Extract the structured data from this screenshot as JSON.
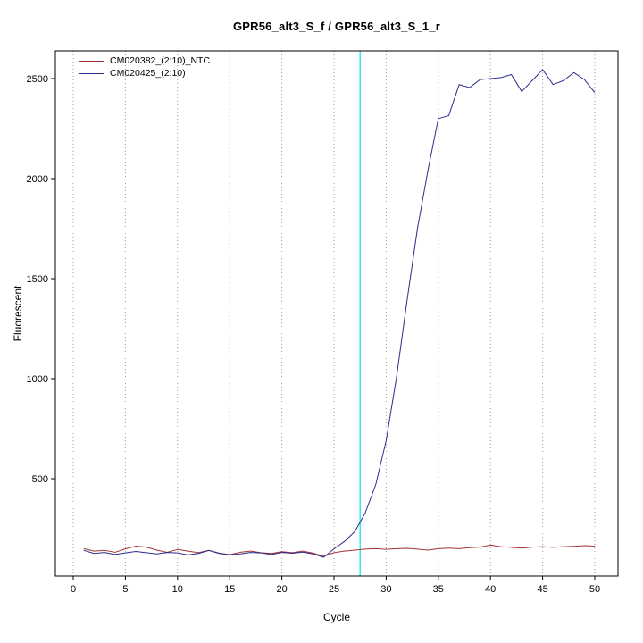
{
  "chart_data": {
    "type": "line",
    "title": "GPR56_alt3_S_f / GPR56_alt3_S_1_r",
    "xlabel": "Cycle",
    "ylabel": "Fluorescent",
    "x_range": [
      1,
      50
    ],
    "xlim": [
      -1,
      51
    ],
    "ylim": [
      0,
      2600
    ],
    "xticks": [
      0,
      5,
      10,
      15,
      20,
      25,
      30,
      35,
      40,
      45,
      50
    ],
    "yticks": [
      500,
      1000,
      1500,
      2000,
      2500
    ],
    "grid": "vertical-dotted",
    "legend_position": "top-left",
    "threshold_line": {
      "x": 27.5,
      "color": "#00e5ee"
    },
    "colors": {
      "axis": "#000000",
      "grid": "#999999"
    },
    "series": [
      {
        "name": "CM020382_(2:10)_NTC",
        "color": "#a33333",
        "values": [
          150,
          138,
          142,
          132,
          149,
          163,
          158,
          143,
          132,
          146,
          138,
          130,
          142,
          128,
          120,
          132,
          138,
          130,
          126,
          135,
          130,
          138,
          128,
          112,
          130,
          138,
          143,
          148,
          150,
          147,
          150,
          152,
          148,
          143,
          150,
          153,
          150,
          155,
          158,
          168,
          160,
          157,
          153,
          158,
          160,
          157,
          160,
          162,
          165,
          163
        ]
      },
      {
        "name": "CM020425_(2:10)",
        "color": "#2b2b8f",
        "values": [
          142,
          126,
          131,
          121,
          129,
          136,
          130,
          124,
          131,
          129,
          119,
          126,
          141,
          126,
          119,
          124,
          131,
          129,
          121,
          131,
          127,
          133,
          124,
          107,
          149,
          186,
          236,
          330,
          470,
          690,
          1010,
          1390,
          1750,
          2040,
          2300,
          2315,
          2470,
          2455,
          2495,
          2500,
          2505,
          2520,
          2435,
          2490,
          2545,
          2470,
          2490,
          2530,
          2495,
          2430
        ]
      }
    ]
  }
}
